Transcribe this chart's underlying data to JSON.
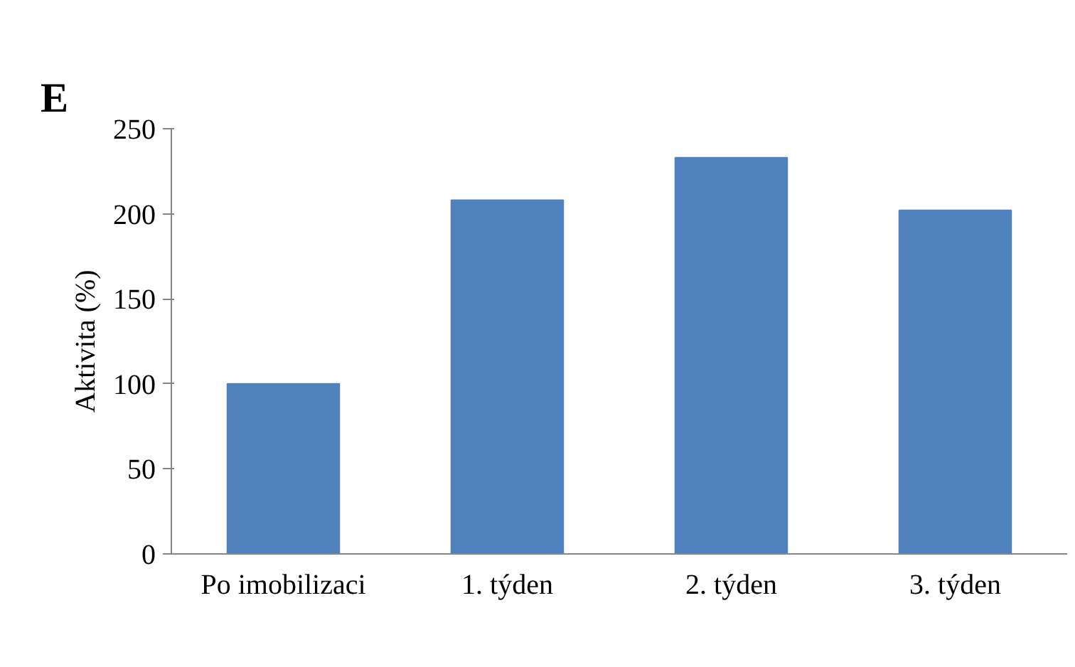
{
  "chart_data": {
    "type": "bar",
    "title": "E",
    "ylabel": "Aktivita (%)",
    "categories": [
      "Po imobilizaci",
      "1. týden",
      "2. týden",
      "3. týden"
    ],
    "values": [
      100,
      208,
      233,
      202
    ],
    "color": "#4f81bd",
    "ylim": [
      0,
      250
    ],
    "yticks": [
      0,
      50,
      100,
      150,
      200,
      250
    ],
    "grid": false
  }
}
